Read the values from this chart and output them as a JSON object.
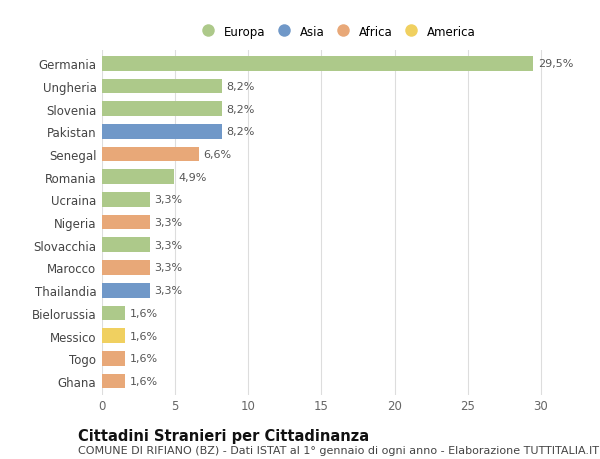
{
  "countries": [
    "Germania",
    "Ungheria",
    "Slovenia",
    "Pakistan",
    "Senegal",
    "Romania",
    "Ucraina",
    "Nigeria",
    "Slovacchia",
    "Marocco",
    "Thailandia",
    "Bielorussia",
    "Messico",
    "Togo",
    "Ghana"
  ],
  "values": [
    29.5,
    8.2,
    8.2,
    8.2,
    6.6,
    4.9,
    3.3,
    3.3,
    3.3,
    3.3,
    3.3,
    1.6,
    1.6,
    1.6,
    1.6
  ],
  "labels": [
    "29,5%",
    "8,2%",
    "8,2%",
    "8,2%",
    "6,6%",
    "4,9%",
    "3,3%",
    "3,3%",
    "3,3%",
    "3,3%",
    "3,3%",
    "1,6%",
    "1,6%",
    "1,6%",
    "1,6%"
  ],
  "continents": [
    "Europa",
    "Europa",
    "Europa",
    "Asia",
    "Africa",
    "Europa",
    "Europa",
    "Africa",
    "Europa",
    "Africa",
    "Asia",
    "Europa",
    "America",
    "Africa",
    "Africa"
  ],
  "continent_colors": {
    "Europa": "#adc98a",
    "Asia": "#7098c8",
    "Africa": "#e8a878",
    "America": "#f0d060"
  },
  "legend_items": [
    "Europa",
    "Asia",
    "Africa",
    "America"
  ],
  "title": "Cittadini Stranieri per Cittadinanza",
  "subtitle": "COMUNE DI RIFIANO (BZ) - Dati ISTAT al 1° gennaio di ogni anno - Elaborazione TUTTITALIA.IT",
  "xlim": [
    0,
    32
  ],
  "xticks": [
    0,
    5,
    10,
    15,
    20,
    25,
    30
  ],
  "background_color": "#ffffff",
  "grid_color": "#dddddd",
  "bar_height": 0.65,
  "label_fontsize": 8.0,
  "tick_fontsize": 8.5,
  "title_fontsize": 10.5,
  "subtitle_fontsize": 8.0
}
